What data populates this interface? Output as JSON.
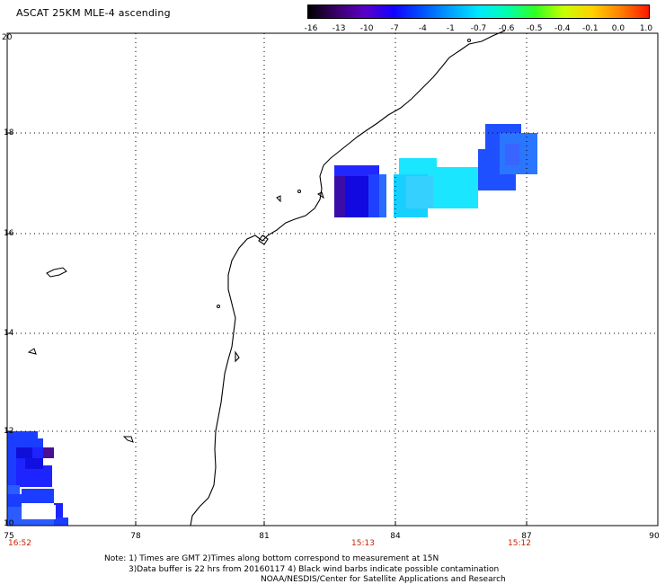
{
  "title": "ASCAT 25KM MLE-4 ascending",
  "colorbar": {
    "ticks": [
      "-16",
      "-13",
      "-10",
      "-7",
      "-4",
      "-1",
      "-0.7",
      "-0.6",
      "-0.5",
      "-0.4",
      "-0.1",
      "0.0",
      "1.0"
    ],
    "colors": [
      "#000000",
      "#3a006a",
      "#5a00c8",
      "#1400ff",
      "#0050ff",
      "#00a0ff",
      "#00e8ff",
      "#00ffb0",
      "#30ff20",
      "#c8ff00",
      "#ffd200",
      "#ff8000",
      "#ff1800"
    ]
  },
  "axes": {
    "lat_labels": [
      "20",
      "18",
      "16",
      "14",
      "12",
      "10"
    ],
    "lon_labels": [
      "75",
      "78",
      "81",
      "84",
      "87",
      "90"
    ],
    "time_labels": [
      {
        "text": "16:52",
        "lon": 75.3
      },
      {
        "text": "15:13",
        "lon": 84.2
      },
      {
        "text": "15:12",
        "lon": 87.7
      }
    ]
  },
  "notes": [
    "Note: 1) Times are GMT 2)Times along bottom correspond to measurement at 15N",
    "3)Data buffer is 22 hrs from 20160117 4) Black wind barbs indicate possible contamination",
    "NOAA/NESDIS/Center for Satellite Applications and Research"
  ]
}
